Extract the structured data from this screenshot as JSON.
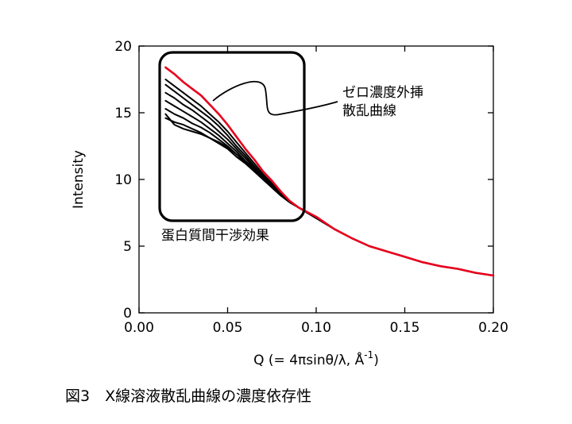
{
  "chart_data": {
    "type": "line",
    "title": "",
    "xlabel": "Q (= 4πsinθ/λ, Å",
    "xlabel_superscript": "-1",
    "xlabel_suffix": ")",
    "ylabel": "Intensity",
    "xlim": [
      0,
      0.2
    ],
    "ylim": [
      0,
      20
    ],
    "xticks": [
      "0.00",
      "0.05",
      "0.10",
      "0.15",
      "0.20"
    ],
    "yticks": [
      "0",
      "5",
      "10",
      "15",
      "20"
    ],
    "grid": false,
    "legend": "none",
    "series": [
      {
        "color": "#e8001c",
        "highlight": true,
        "x": [
          0.015,
          0.02,
          0.025,
          0.03,
          0.035,
          0.04,
          0.045,
          0.05,
          0.055,
          0.06,
          0.065,
          0.07,
          0.075,
          0.08,
          0.085,
          0.09,
          0.1,
          0.11,
          0.12,
          0.13,
          0.14,
          0.15,
          0.16,
          0.17,
          0.18,
          0.19,
          0.2
        ],
        "y": [
          18.4,
          17.9,
          17.3,
          16.8,
          16.3,
          15.6,
          14.9,
          14.1,
          13.2,
          12.3,
          11.5,
          10.6,
          9.9,
          9.1,
          8.4,
          7.9,
          7.2,
          6.3,
          5.6,
          5.0,
          4.6,
          4.2,
          3.8,
          3.5,
          3.3,
          3.0,
          2.8
        ]
      },
      {
        "color": "#000000",
        "x": [
          0.015,
          0.02,
          0.025,
          0.03,
          0.035,
          0.04,
          0.045,
          0.05,
          0.055,
          0.06,
          0.065,
          0.07,
          0.075,
          0.08,
          0.085,
          0.09,
          0.1,
          0.11,
          0.12,
          0.13,
          0.14,
          0.15,
          0.16,
          0.17,
          0.18,
          0.19,
          0.2
        ],
        "y": [
          17.5,
          17.0,
          16.5,
          16.0,
          15.5,
          14.9,
          14.3,
          13.6,
          12.8,
          12.0,
          11.2,
          10.4,
          9.7,
          9.0,
          8.4,
          7.9,
          7.1,
          6.3,
          5.6,
          5.0,
          4.6,
          4.2,
          3.8,
          3.5,
          3.3,
          3.0,
          2.8
        ]
      },
      {
        "color": "#000000",
        "x": [
          0.015,
          0.02,
          0.025,
          0.03,
          0.035,
          0.04,
          0.045,
          0.05,
          0.055,
          0.06,
          0.065,
          0.07,
          0.075,
          0.08,
          0.085,
          0.09,
          0.1,
          0.11,
          0.12,
          0.13,
          0.14,
          0.15,
          0.16,
          0.17,
          0.18,
          0.19,
          0.2
        ],
        "y": [
          17.1,
          16.6,
          16.1,
          15.6,
          15.1,
          14.6,
          14.0,
          13.3,
          12.5,
          11.8,
          11.0,
          10.3,
          9.6,
          8.9,
          8.3,
          7.9,
          7.1,
          6.3,
          5.6,
          5.0,
          4.6,
          4.2,
          3.8,
          3.5,
          3.3,
          3.0,
          2.8
        ]
      },
      {
        "color": "#000000",
        "x": [
          0.015,
          0.02,
          0.025,
          0.03,
          0.035,
          0.04,
          0.045,
          0.05,
          0.055,
          0.06,
          0.065,
          0.07,
          0.075,
          0.08,
          0.085,
          0.09,
          0.1,
          0.11,
          0.12,
          0.13,
          0.14,
          0.15,
          0.16,
          0.17,
          0.18,
          0.19,
          0.2
        ],
        "y": [
          16.5,
          16.1,
          15.6,
          15.2,
          14.7,
          14.2,
          13.6,
          13.0,
          12.3,
          11.6,
          10.9,
          10.2,
          9.5,
          8.9,
          8.3,
          7.9,
          7.1,
          6.3,
          5.6,
          5.0,
          4.6,
          4.2,
          3.8,
          3.5,
          3.3,
          3.0,
          2.8
        ]
      },
      {
        "color": "#000000",
        "x": [
          0.015,
          0.02,
          0.025,
          0.03,
          0.035,
          0.04,
          0.045,
          0.05,
          0.055,
          0.06,
          0.065,
          0.07,
          0.075,
          0.08,
          0.085,
          0.09,
          0.1,
          0.11,
          0.12,
          0.13,
          0.14,
          0.15,
          0.16,
          0.17,
          0.18,
          0.19,
          0.2
        ],
        "y": [
          15.9,
          15.5,
          15.1,
          14.7,
          14.3,
          13.8,
          13.3,
          12.7,
          12.1,
          11.4,
          10.8,
          10.1,
          9.5,
          8.8,
          8.3,
          7.9,
          7.1,
          6.3,
          5.6,
          5.0,
          4.6,
          4.2,
          3.8,
          3.5,
          3.3,
          3.0,
          2.8
        ]
      },
      {
        "color": "#000000",
        "x": [
          0.015,
          0.02,
          0.025,
          0.03,
          0.035,
          0.04,
          0.045,
          0.05,
          0.055,
          0.06,
          0.065,
          0.07,
          0.075,
          0.08,
          0.085,
          0.09,
          0.1,
          0.11,
          0.12,
          0.13,
          0.14,
          0.15,
          0.16,
          0.17,
          0.18,
          0.19,
          0.2
        ],
        "y": [
          15.3,
          14.9,
          14.6,
          14.2,
          13.9,
          13.5,
          13.0,
          12.5,
          11.9,
          11.3,
          10.7,
          10.0,
          9.4,
          8.8,
          8.3,
          7.9,
          7.1,
          6.3,
          5.6,
          5.0,
          4.6,
          4.2,
          3.8,
          3.5,
          3.3,
          3.0,
          2.8
        ]
      },
      {
        "color": "#000000",
        "x": [
          0.015,
          0.02,
          0.025,
          0.03,
          0.035,
          0.04,
          0.045,
          0.05,
          0.055,
          0.06,
          0.065,
          0.07,
          0.075,
          0.08,
          0.085,
          0.09,
          0.1,
          0.11,
          0.12,
          0.13,
          0.14,
          0.15,
          0.16,
          0.17,
          0.18,
          0.19,
          0.2
        ],
        "y": [
          14.6,
          14.3,
          14.1,
          13.8,
          13.5,
          13.1,
          12.7,
          12.3,
          11.7,
          11.2,
          10.6,
          10.0,
          9.4,
          8.8,
          8.3,
          7.9,
          7.1,
          6.3,
          5.6,
          5.0,
          4.6,
          4.2,
          3.8,
          3.5,
          3.3,
          3.0,
          2.8
        ]
      },
      {
        "color": "#000000",
        "x": [
          0.015,
          0.02,
          0.025,
          0.03,
          0.035,
          0.04,
          0.045,
          0.05,
          0.055,
          0.06,
          0.065,
          0.07,
          0.075,
          0.08,
          0.085,
          0.09,
          0.1,
          0.11,
          0.12,
          0.13,
          0.14,
          0.15,
          0.16,
          0.17,
          0.18,
          0.19,
          0.2
        ],
        "y": [
          14.9,
          14.1,
          13.8,
          13.6,
          13.4,
          13.1,
          12.8,
          12.4,
          11.9,
          11.3,
          10.7,
          10.1,
          9.4,
          8.8,
          8.3,
          7.9,
          7.1,
          6.3,
          5.6,
          5.0,
          4.6,
          4.2,
          3.8,
          3.5,
          3.3,
          3.0,
          2.8
        ]
      }
    ],
    "annotations": {
      "zero_extrap_line1": "ゼロ濃度外挿",
      "zero_extrap_line2": "散乱曲線",
      "interference": "蛋白質間干渉効果"
    }
  },
  "caption": "図3　X線溶液散乱曲線の濃度依存性"
}
